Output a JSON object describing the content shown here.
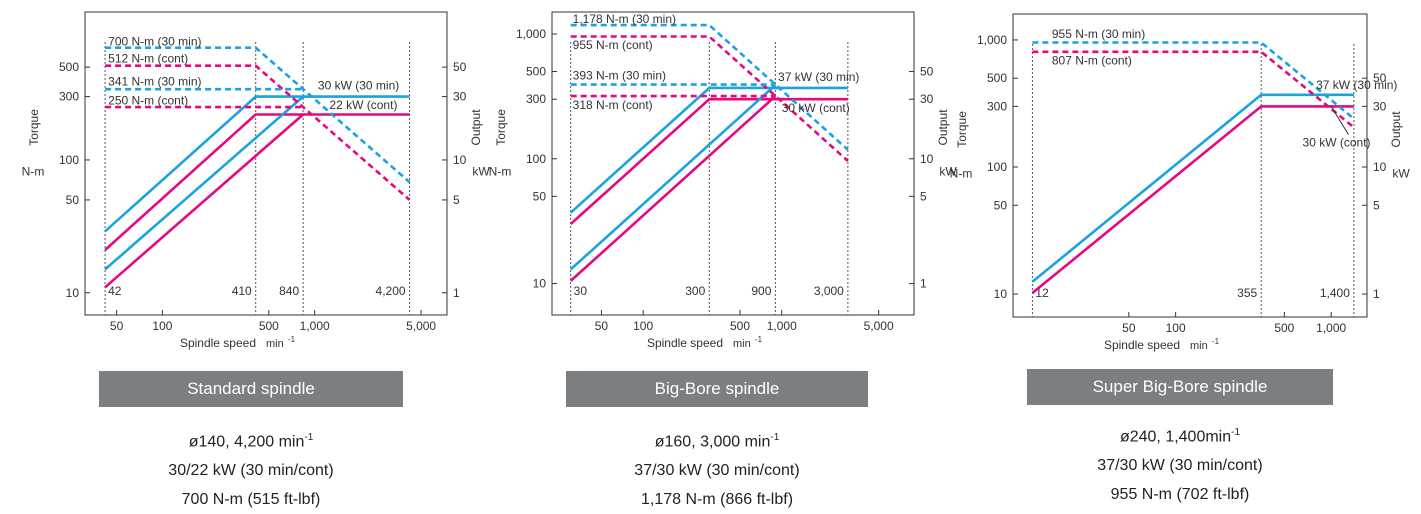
{
  "colors": {
    "blue": "#1aa3e0",
    "magenta": "#e5097f",
    "axis": "#333333",
    "dotted": "#555555",
    "band": "#7b7f82"
  },
  "chart_data": [
    {
      "type": "line",
      "title": "Standard spindle",
      "xlabel": "Spindle speed",
      "xunit": "min",
      "xunit_exp": "-1",
      "ylabel_left": "Torque",
      "yunit_left": "N-m",
      "ylabel_right": "Output",
      "yunit_right": "kW",
      "x_scale": "log",
      "y_scale": "log",
      "xlim": [
        31,
        7400
      ],
      "ylim_left": [
        6.8,
        1300
      ],
      "right_axis_ratio": 10,
      "x_ticks": [
        50,
        100,
        500,
        1000,
        5000
      ],
      "x_tick_labels": [
        "50",
        "100",
        "500",
        "1,000",
        "5,000"
      ],
      "y_ticks_left": [
        10,
        50,
        100,
        300,
        500
      ],
      "y_tick_labels_left": [
        "10",
        "50",
        "100",
        "300",
        "500"
      ],
      "y_tick_labels_right": [
        "1",
        "5",
        "10",
        "30",
        "50"
      ],
      "vlines": [
        42,
        410,
        840,
        4200
      ],
      "vline_labels": [
        "42",
        "410",
        "840",
        "4,200"
      ],
      "series": [
        {
          "name": "30 kW (30 min)",
          "color": "blue",
          "x": [
            42,
            410,
            4200
          ],
          "y": [
            29,
            300,
            300
          ]
        },
        {
          "name": "22 kW (cont)",
          "color": "magenta",
          "x": [
            42,
            410,
            4200
          ],
          "y": [
            21,
            220,
            220
          ]
        },
        {
          "color": "blue",
          "x": [
            42,
            840
          ],
          "y": [
            15,
            300
          ]
        },
        {
          "color": "magenta",
          "x": [
            42,
            840
          ],
          "y": [
            11,
            220
          ]
        },
        {
          "name": "700 N-m (30 min)",
          "color": "blue",
          "dashed": true,
          "x": [
            42,
            410,
            4200
          ],
          "y": [
            700,
            700,
            68
          ]
        },
        {
          "name": "512 N-m (cont)",
          "color": "magenta",
          "dashed": true,
          "x": [
            42,
            410,
            4200
          ],
          "y": [
            512,
            512,
            50
          ]
        },
        {
          "name": "341 N-m (30 min)",
          "color": "blue",
          "dashed": true,
          "x": [
            42,
            840
          ],
          "y": [
            341,
            341
          ]
        },
        {
          "name": "250 N-m (cont)",
          "color": "magenta",
          "dashed": true,
          "x": [
            42,
            840
          ],
          "y": [
            250,
            250
          ]
        }
      ],
      "annotations": [
        {
          "text": "700 N-m (30 min)",
          "x": 44,
          "y": 730
        },
        {
          "text": "512 N-m (cont)",
          "x": 44,
          "y": 540
        },
        {
          "text": "341 N-m (30 min)",
          "x": 44,
          "y": 365
        },
        {
          "text": "250 N-m (cont)",
          "x": 44,
          "y": 262
        },
        {
          "text": "30 kW (30 min)",
          "x": 1050,
          "y": 340
        },
        {
          "text": "22 kW (cont)",
          "x": 1250,
          "y": 242
        }
      ]
    },
    {
      "type": "line",
      "title": "Big-Bore spindle",
      "xlabel": "Spindle speed",
      "xunit": "min",
      "xunit_exp": "-1",
      "ylabel_left": "Torque",
      "yunit_left": "N-m",
      "ylabel_right": "Output",
      "yunit_right": "kW",
      "x_scale": "log",
      "y_scale": "log",
      "xlim": [
        22,
        9000
      ],
      "ylim_left": [
        5.6,
        1500
      ],
      "right_axis_ratio": 10,
      "x_ticks": [
        50,
        100,
        500,
        1000,
        5000
      ],
      "x_tick_labels": [
        "50",
        "100",
        "500",
        "1,000",
        "5,000"
      ],
      "y_ticks_left": [
        10,
        50,
        100,
        300,
        500,
        1000
      ],
      "y_tick_labels_left": [
        "10",
        "50",
        "100",
        "300",
        "500",
        "1,000"
      ],
      "y_tick_labels_right": [
        "1",
        "5",
        "10",
        "30",
        "50"
      ],
      "vlines": [
        30,
        300,
        900,
        3000
      ],
      "vline_labels": [
        "30",
        "300",
        "900",
        "3,000"
      ],
      "series": [
        {
          "name": "37 kW (30 min)",
          "color": "blue",
          "x": [
            30,
            300,
            3000
          ],
          "y": [
            37,
            370,
            370
          ]
        },
        {
          "name": "30 kW (cont)",
          "color": "magenta",
          "x": [
            30,
            300,
            3000
          ],
          "y": [
            30,
            300,
            300
          ]
        },
        {
          "color": "blue",
          "x": [
            30,
            900
          ],
          "y": [
            13,
            390
          ]
        },
        {
          "color": "magenta",
          "x": [
            30,
            900
          ],
          "y": [
            10.5,
            318
          ]
        },
        {
          "name": "1,178 N-m (30 min)",
          "color": "blue",
          "dashed": true,
          "x": [
            30,
            300,
            3000
          ],
          "y": [
            1178,
            1178,
            118
          ]
        },
        {
          "name": "955 N-m (cont)",
          "color": "magenta",
          "dashed": true,
          "x": [
            30,
            300,
            3000
          ],
          "y": [
            955,
            955,
            96
          ]
        },
        {
          "name": "393 N-m (30 min)",
          "color": "blue",
          "dashed": true,
          "x": [
            30,
            900
          ],
          "y": [
            393,
            393
          ]
        },
        {
          "name": "318 N-m (cont)",
          "color": "magenta",
          "dashed": true,
          "x": [
            30,
            900
          ],
          "y": [
            318,
            318
          ]
        }
      ],
      "annotations": [
        {
          "text": "1,178 N-m (30 min)",
          "x": 31,
          "y": 1230
        },
        {
          "text": "955 N-m (cont)",
          "x": 31,
          "y": 760
        },
        {
          "text": "393 N-m (30 min)",
          "x": 31,
          "y": 430
        },
        {
          "text": "318 N-m (cont)",
          "x": 31,
          "y": 250
        },
        {
          "text": "37 kW (30 min)",
          "x": 940,
          "y": 420
        },
        {
          "text": "30 kW (cont)",
          "x": 1000,
          "y": 238
        }
      ]
    },
    {
      "type": "line",
      "title": "Super Big-Bore spindle",
      "xlabel": "Spindle speed",
      "xunit": "min",
      "xunit_exp": "-1",
      "ylabel_left": "Torque",
      "yunit_left": "N-m",
      "ylabel_right": "Output",
      "yunit_right": "kW",
      "x_scale": "log",
      "y_scale": "log",
      "xlim": [
        9,
        1700
      ],
      "ylim_left": [
        6.6,
        1600
      ],
      "right_axis_ratio": 10,
      "x_ticks": [
        50,
        100,
        500,
        1000
      ],
      "x_tick_labels": [
        "50",
        "100",
        "500",
        "1,000"
      ],
      "y_ticks_left": [
        10,
        50,
        100,
        300,
        500,
        1000
      ],
      "y_tick_labels_left": [
        "10",
        "50",
        "100",
        "300",
        "500",
        "1,000"
      ],
      "y_tick_labels_right": [
        "1",
        "5",
        "10",
        "30",
        "50"
      ],
      "vlines": [
        12,
        355,
        1400
      ],
      "vline_labels": [
        "12",
        "355",
        "1,400"
      ],
      "series": [
        {
          "name": "37 kW (30 min)",
          "color": "blue",
          "x": [
            12,
            355,
            1400
          ],
          "y": [
            12.5,
            370,
            370
          ]
        },
        {
          "name": "30 kW (cont)",
          "color": "magenta",
          "x": [
            12,
            355,
            1400
          ],
          "y": [
            10.2,
            300,
            300
          ]
        },
        {
          "name": "955 N-m (30 min)",
          "color": "blue",
          "dashed": true,
          "x": [
            12,
            355,
            1400
          ],
          "y": [
            955,
            955,
            240
          ]
        },
        {
          "name": "807 N-m (cont)",
          "color": "magenta",
          "dashed": true,
          "x": [
            12,
            355,
            1400
          ],
          "y": [
            807,
            807,
            205
          ]
        }
      ],
      "annotations": [
        {
          "text": "955 N-m (30 min)",
          "x": 16,
          "y": 1040
        },
        {
          "text": "807 N-m (cont)",
          "x": 16,
          "y": 640
        },
        {
          "text": "37 kW (30 min)",
          "x": 800,
          "y": 410
        }
      ],
      "callout": {
        "text": "30 kW (cont)",
        "x": 1000,
        "y": 300,
        "label_x": 1500,
        "label_y": 150
      }
    }
  ],
  "captions": [
    {
      "title": "Standard spindle",
      "line1_a": "ø140,  4,200 min",
      "line1_sup": "-1",
      "line2": "30/22 kW (30 min/cont)",
      "line3": "700 N-m (515 ft-lbf)"
    },
    {
      "title": "Big-Bore spindle",
      "line1_a": "ø160,  3,000 min",
      "line1_sup": "-1",
      "line2": "37/30 kW (30 min/cont)",
      "line3": "1,178 N-m (866 ft-lbf)"
    },
    {
      "title": "Super Big-Bore spindle",
      "line1_a": "ø240,  1,400min",
      "line1_sup": "-1",
      "line2": "37/30 kW (30 min/cont)",
      "line3": "955 N-m (702 ft-lbf)"
    }
  ]
}
